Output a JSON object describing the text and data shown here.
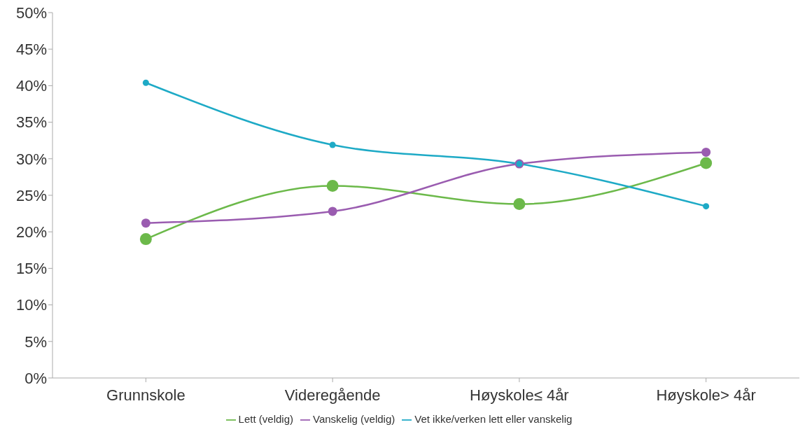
{
  "chart_data": {
    "type": "line",
    "categories": [
      "Grunnskole",
      "Videregående",
      "Høyskole≤ 4år",
      "Høyskole> 4år"
    ],
    "series": [
      {
        "name": "Lett (veldig)",
        "color": "#6cb94a",
        "values": [
          19.0,
          26.3,
          23.8,
          29.4
        ]
      },
      {
        "name": "Vanskelig (veldig)",
        "color": "#9a5cb0",
        "values": [
          21.2,
          22.8,
          29.3,
          30.9
        ]
      },
      {
        "name": "Vet ikke/verken lett eller vanskelig",
        "color": "#1eaac6",
        "values": [
          40.4,
          31.9,
          29.3,
          23.5
        ]
      }
    ],
    "ylim": [
      0,
      50
    ],
    "yticks": [
      {
        "value": 0,
        "label": "0%"
      },
      {
        "value": 5,
        "label": "5%"
      },
      {
        "value": 10,
        "label": "10%"
      },
      {
        "value": 15,
        "label": "15%"
      },
      {
        "value": 20,
        "label": "20%"
      },
      {
        "value": 25,
        "label": "25%"
      },
      {
        "value": 30,
        "label": "30%"
      },
      {
        "value": 35,
        "label": "35%"
      },
      {
        "value": 40,
        "label": "40%"
      },
      {
        "value": 45,
        "label": "45%"
      },
      {
        "value": 50,
        "label": "50%"
      }
    ],
    "grid": false,
    "legend": "bottom",
    "marker": "circle",
    "line_style": "solid"
  }
}
